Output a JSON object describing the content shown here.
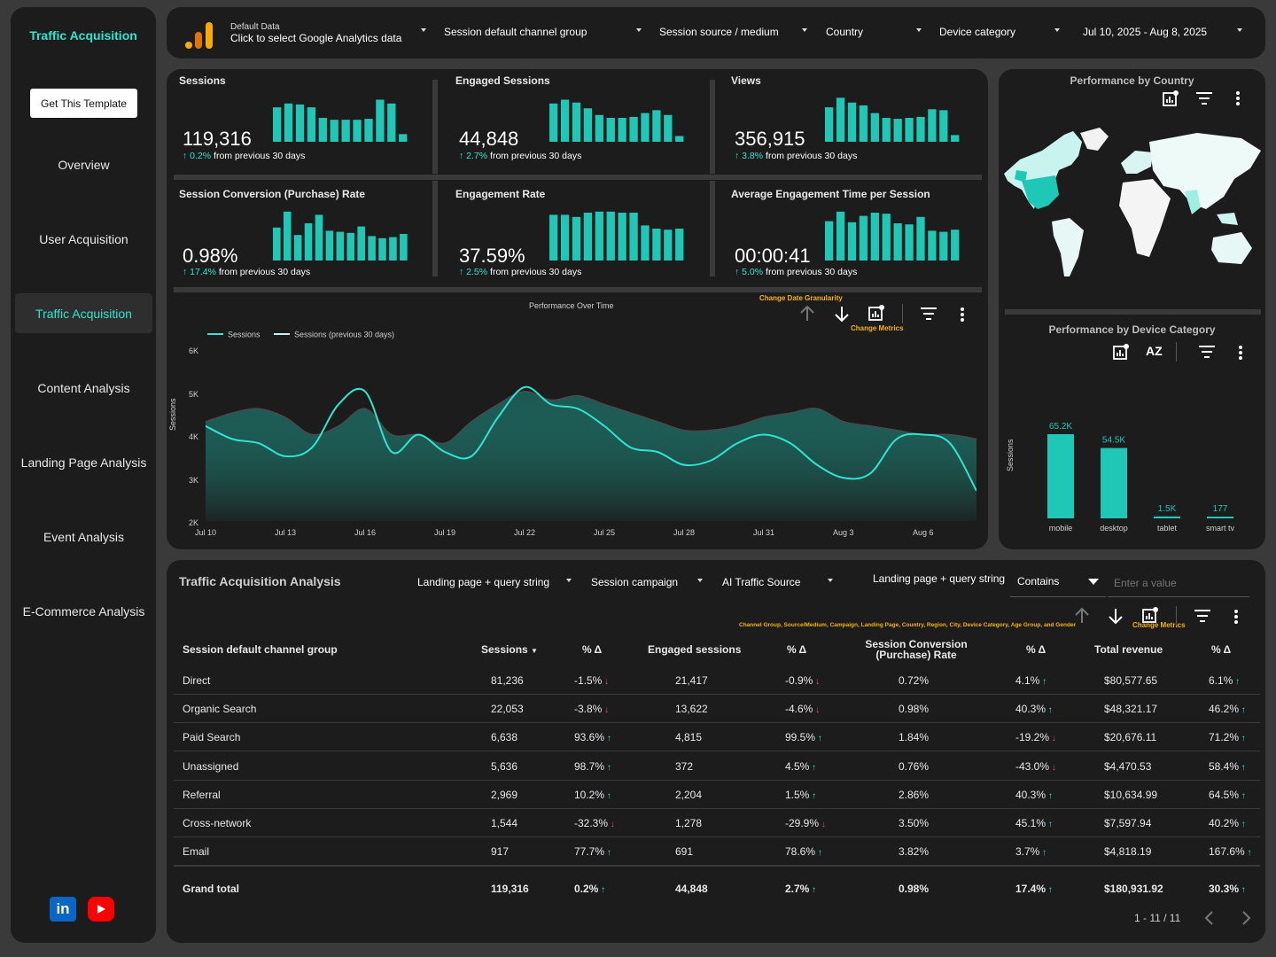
{
  "sidebar": {
    "brand": "Traffic Acquisition",
    "template_button": "Get This Template",
    "items": [
      {
        "label": "Overview"
      },
      {
        "label": "User Acquisition"
      },
      {
        "label": "Traffic Acquisition"
      },
      {
        "label": "Content Analysis"
      },
      {
        "label": "Landing Page Analysis"
      },
      {
        "label": "Event Analysis"
      },
      {
        "label": "E-Commerce Analysis"
      }
    ],
    "linkedin": "in"
  },
  "topbar": {
    "ds_small": "Default Data",
    "ds_main": "Click to select Google Analytics data",
    "filters": [
      "Session default channel group",
      "Session source / medium",
      "Country",
      "Device category",
      "Jul 10, 2025 - Aug 8, 2025"
    ]
  },
  "kpis": [
    {
      "title": "Sessions",
      "value": "119,316",
      "pct": "0.2%",
      "suffix": "from previous 30 days",
      "bars": [
        0.72,
        0.8,
        0.78,
        0.72,
        0.5,
        0.46,
        0.46,
        0.46,
        0.48,
        0.88,
        0.8,
        0.16
      ]
    },
    {
      "title": "Engaged Sessions",
      "value": "44,848",
      "pct": "2.7%",
      "suffix": "from previous 30 days",
      "bars": [
        0.8,
        0.88,
        0.82,
        0.7,
        0.56,
        0.5,
        0.5,
        0.52,
        0.6,
        0.66,
        0.56,
        0.12
      ]
    },
    {
      "title": "Views",
      "value": "356,915",
      "pct": "3.8%",
      "suffix": "from previous 30 days",
      "bars": [
        0.72,
        0.92,
        0.82,
        0.76,
        0.6,
        0.5,
        0.48,
        0.5,
        0.52,
        0.68,
        0.66,
        0.14
      ]
    },
    {
      "title": "Session Conversion (Purchase) Rate",
      "value": "0.98%",
      "pct": "17.4%",
      "suffix": "from previous 30 days",
      "bars": [
        0.62,
        0.92,
        0.48,
        0.7,
        0.86,
        0.56,
        0.54,
        0.52,
        0.64,
        0.46,
        0.42,
        0.44,
        0.5
      ]
    },
    {
      "title": "Engagement Rate",
      "value": "37.59%",
      "pct": "2.5%",
      "suffix": "from previous 30 days",
      "bars": [
        0.86,
        0.86,
        0.82,
        0.9,
        0.92,
        0.92,
        0.9,
        0.9,
        0.66,
        0.6,
        0.58,
        0.6
      ]
    },
    {
      "title": "Average Engagement Time per Session",
      "value": "00:00:41",
      "pct": "5.0%",
      "suffix": "from previous 30 days",
      "bars": [
        0.74,
        0.92,
        0.72,
        0.84,
        0.9,
        0.88,
        0.7,
        0.68,
        0.82,
        0.56,
        0.54,
        0.58
      ]
    }
  ],
  "perf_chart": {
    "title": "Performance Over Time",
    "granularity": "Change Date Granularity",
    "metrics": "Change Metrics",
    "legend": [
      "Sessions",
      "Sessions (previous 30 days)"
    ],
    "ylabel": "Sessions",
    "yticks": [
      "6K",
      "5K",
      "4K",
      "3K",
      "2K"
    ],
    "xticks": [
      "Jul 10",
      "Jul 13",
      "Jul 16",
      "Jul 19",
      "Jul 22",
      "Jul 25",
      "Jul 28",
      "Jul 31",
      "Aug 3",
      "Aug 6"
    ]
  },
  "chart_data": [
    {
      "type": "line",
      "title": "Performance Over Time",
      "ylabel": "Sessions",
      "ylim": [
        2000,
        6000
      ],
      "x": [
        "Jul 10",
        "Jul 11",
        "Jul 12",
        "Jul 13",
        "Jul 14",
        "Jul 15",
        "Jul 16",
        "Jul 17",
        "Jul 18",
        "Jul 19",
        "Jul 20",
        "Jul 21",
        "Jul 22",
        "Jul 23",
        "Jul 24",
        "Jul 25",
        "Jul 26",
        "Jul 27",
        "Jul 28",
        "Jul 29",
        "Jul 30",
        "Jul 31",
        "Aug 1",
        "Aug 2",
        "Aug 3",
        "Aug 4",
        "Aug 5",
        "Aug 6",
        "Aug 7",
        "Aug 8"
      ],
      "series": [
        {
          "name": "Sessions",
          "values": [
            4300,
            4500,
            4600,
            4400,
            4000,
            4200,
            4600,
            4000,
            4000,
            3800,
            4300,
            4700,
            5000,
            4800,
            4900,
            4700,
            4500,
            4300,
            4100,
            4100,
            4200,
            4400,
            4500,
            4600,
            4300,
            4200,
            4100,
            4000,
            4000,
            3900
          ]
        },
        {
          "name": "Sessions (previous 30 days)",
          "values": [
            4200,
            3900,
            3800,
            3500,
            3700,
            4700,
            5000,
            3600,
            4000,
            3600,
            3500,
            4400,
            5100,
            4700,
            4600,
            4200,
            3700,
            3600,
            3300,
            3400,
            3800,
            4000,
            3800,
            3300,
            3000,
            3100,
            3900,
            4000,
            3800,
            2700
          ]
        }
      ]
    },
    {
      "type": "bar",
      "title": "Performance by Device Category",
      "ylabel": "Sessions",
      "categories": [
        "mobile",
        "desktop",
        "tablet",
        "smart tv"
      ],
      "values": [
        65200,
        54500,
        1500,
        177
      ],
      "labels": [
        "65.2K",
        "54.5K",
        "1.5K",
        "177"
      ]
    }
  ],
  "country_panel": {
    "title": "Performance by Country"
  },
  "device_panel": {
    "title": "Performance by Device Category",
    "ylabel": "Sessions",
    "az": "AZ"
  },
  "colors": {
    "accent": "#2ee6cf",
    "bar": "#1fc7b6",
    "bg": "#1c1c1c",
    "up": "#2ee6cf",
    "down": "#ff4d4d",
    "orange": "#f5b400"
  },
  "table": {
    "title": "Traffic Acquisition Analysis",
    "filters": [
      "Landing page + query string",
      "Session campaign",
      "AI Traffic Source"
    ],
    "text_filter": {
      "label": "Landing page + query string",
      "mode": "Contains",
      "placeholder": "Enter a value"
    },
    "dims_hint": "Channel Group, Source/Medium, Campaign, Landing Page, Country, Region, City, Device Category, Age Group, and Gender",
    "metrics_hint": "Change Metrics",
    "headers": [
      "Session default channel group",
      "Sessions",
      "% Δ",
      "Engaged sessions",
      "% Δ",
      "Session Conversion (Purchase) Rate",
      "% Δ",
      "Total revenue",
      "% Δ"
    ],
    "rows": [
      {
        "c": [
          "Direct",
          "81,236",
          "-1.5%",
          "21,417",
          "-0.9%",
          "0.72%",
          "4.1%",
          "$80,577.65",
          "6.1%"
        ],
        "d": [
          "dn",
          "dn",
          "up",
          "up"
        ]
      },
      {
        "c": [
          "Organic Search",
          "22,053",
          "-3.8%",
          "13,622",
          "-4.6%",
          "0.98%",
          "40.3%",
          "$48,321.17",
          "46.2%"
        ],
        "d": [
          "dn",
          "dn",
          "up",
          "up"
        ]
      },
      {
        "c": [
          "Paid Search",
          "6,638",
          "93.6%",
          "4,815",
          "99.5%",
          "1.84%",
          "-19.2%",
          "$20,676.11",
          "71.2%"
        ],
        "d": [
          "up",
          "up",
          "dn",
          "up"
        ]
      },
      {
        "c": [
          "Unassigned",
          "5,636",
          "98.7%",
          "372",
          "4.5%",
          "0.76%",
          "-43.0%",
          "$4,470.53",
          "58.4%"
        ],
        "d": [
          "up",
          "up",
          "dn",
          "up"
        ]
      },
      {
        "c": [
          "Referral",
          "2,969",
          "10.2%",
          "2,204",
          "1.5%",
          "2.86%",
          "40.3%",
          "$10,634.99",
          "64.5%"
        ],
        "d": [
          "up",
          "up",
          "up",
          "up"
        ]
      },
      {
        "c": [
          "Cross-network",
          "1,544",
          "-32.3%",
          "1,278",
          "-29.9%",
          "3.50%",
          "45.1%",
          "$7,597.94",
          "40.2%"
        ],
        "d": [
          "dn",
          "dn",
          "up",
          "up"
        ]
      },
      {
        "c": [
          "Email",
          "917",
          "77.7%",
          "691",
          "78.6%",
          "3.82%",
          "3.7%",
          "$4,818.19",
          "167.6%"
        ],
        "d": [
          "up",
          "up",
          "up",
          "up"
        ]
      }
    ],
    "total": {
      "c": [
        "Grand total",
        "119,316",
        "0.2%",
        "44,848",
        "2.7%",
        "0.98%",
        "17.4%",
        "$180,931.92",
        "30.3%"
      ],
      "d": [
        "up",
        "up",
        "up",
        "up"
      ]
    },
    "pagination": "1 - 11 / 11"
  }
}
